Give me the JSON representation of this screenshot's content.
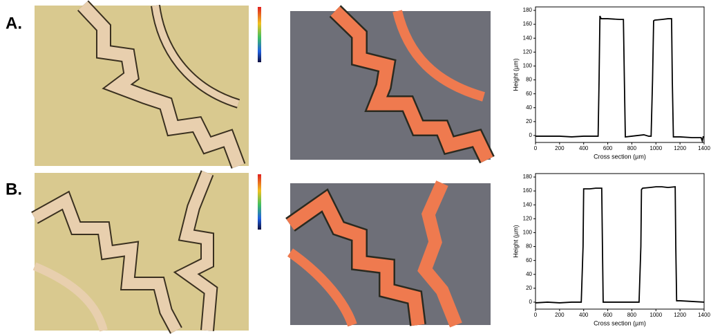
{
  "panels": [
    {
      "label": "A."
    },
    {
      "label": "B."
    }
  ],
  "chart_data": [
    {
      "type": "line",
      "xlabel": "Cross section (µm)",
      "ylabel": "Height (µm)",
      "x": [
        0,
        100,
        200,
        300,
        400,
        500,
        520,
        528,
        535,
        545,
        600,
        700,
        730,
        738,
        746,
        800,
        850,
        900,
        940,
        960,
        972,
        981,
        990,
        1050,
        1100,
        1130,
        1136,
        1145,
        1200,
        1300,
        1360,
        1375,
        1385,
        1392,
        1400
      ],
      "series": [
        {
          "color": "#000000",
          "values": [
            -1,
            -1,
            -1,
            -2,
            -1,
            -1,
            -1,
            80,
            172,
            168,
            168,
            167,
            167,
            80,
            -2,
            -1,
            0,
            1,
            -1,
            -1,
            80,
            165,
            166,
            167,
            168,
            168,
            80,
            -2,
            -2,
            -3,
            -3,
            -3,
            -8,
            -2,
            -2
          ]
        }
      ],
      "xlim": [
        0,
        1400
      ],
      "ylim": [
        -10,
        185
      ],
      "xticks": [
        0,
        200,
        400,
        600,
        800,
        1000,
        1200,
        1400
      ],
      "yticks": [
        0,
        20,
        40,
        60,
        80,
        100,
        120,
        140,
        160,
        180
      ]
    },
    {
      "type": "line",
      "xlabel": "Cross section (µm)",
      "ylabel": "Height (µm)",
      "x": [
        0,
        100,
        200,
        300,
        380,
        395,
        400,
        410,
        450,
        500,
        550,
        556,
        562,
        600,
        700,
        800,
        860,
        875,
        880,
        890,
        950,
        1000,
        1050,
        1100,
        1160,
        1165,
        1172,
        1200,
        1300,
        1400
      ],
      "series": [
        {
          "color": "#000000",
          "values": [
            -1,
            0,
            -1,
            0,
            0,
            80,
            163,
            163,
            163,
            164,
            164,
            80,
            0,
            0,
            0,
            0,
            0,
            80,
            162,
            164,
            165,
            166,
            166,
            165,
            166,
            80,
            2,
            2,
            1,
            0
          ]
        }
      ],
      "xlim": [
        0,
        1400
      ],
      "ylim": [
        -10,
        185
      ],
      "xticks": [
        0,
        200,
        400,
        600,
        800,
        1000,
        1200,
        1400
      ],
      "yticks": [
        0,
        20,
        40,
        60,
        80,
        100,
        120,
        140,
        160,
        180
      ]
    }
  ]
}
